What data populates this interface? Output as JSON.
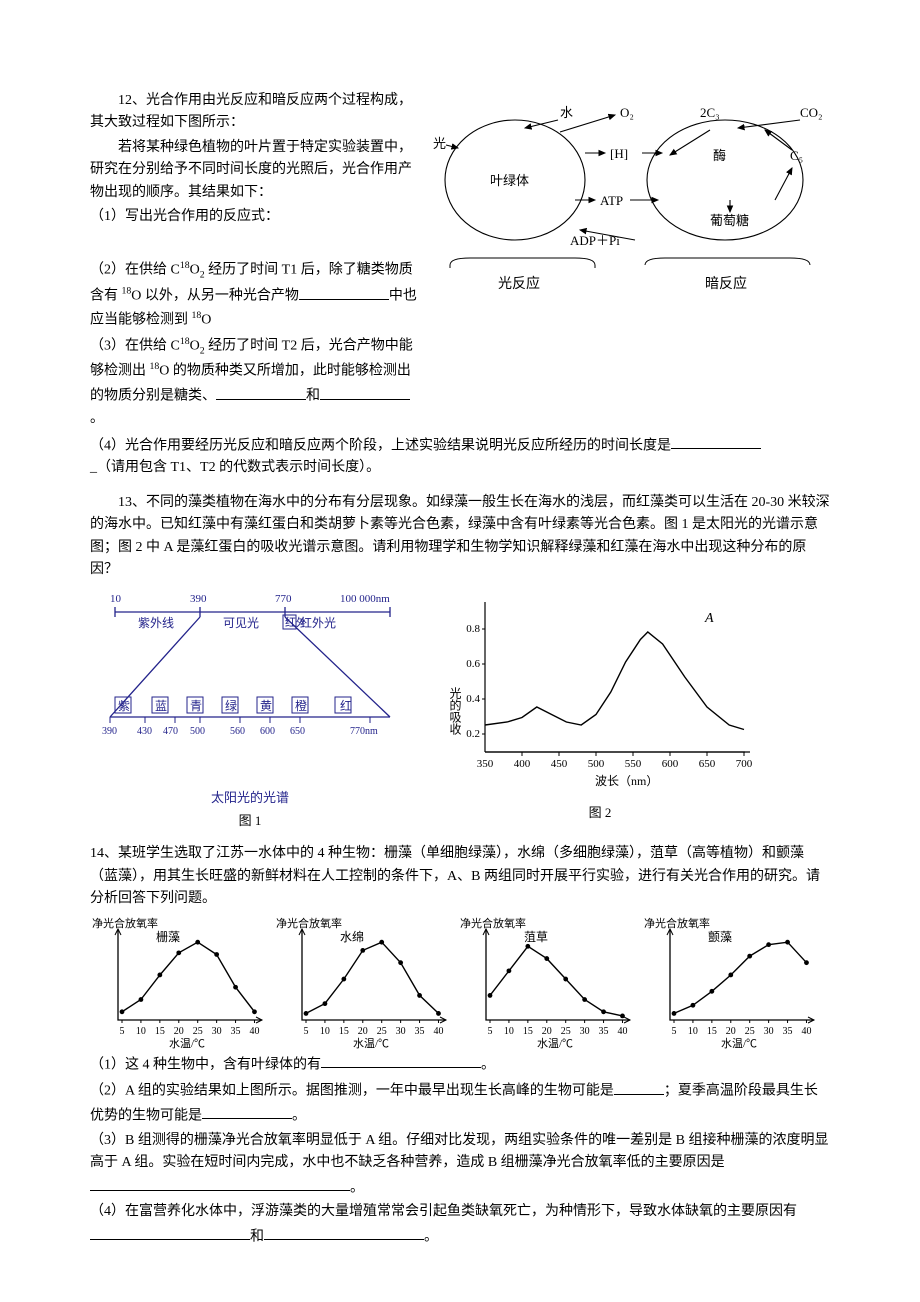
{
  "q12": {
    "intro": "12、光合作用由光反应和暗反应两个过程构成，其大致过程如下图所示：",
    "p1": "若将某种绿色植物的叶片置于特定实验装置中，研究在分别给予不同时间长度的光照后，光合作用产物出现的顺序。其结果如下：",
    "i1": "（1）写出光合作用的反应式：",
    "i2a": "（2）在供给 C",
    "i2b": "O",
    "i2c": " 经历了时间 T1 后，除了糖类物质含有 ",
    "i2d": "O 以外，从另一种光合产物",
    "i2e": "中也应当能够检测到 ",
    "i2f": "O",
    "i3a": "（3）在供给 C",
    "i3b": "O",
    "i3c": " 经历了时间 T2 后，光合产物中能够检测出 ",
    "i3d": "O 的物质种类又所增加，此时能够检测出的物质分别是糖类、",
    "i3e": "和",
    "i4a": "（4）光合作用要经历光反应和暗反应两个阶段，上述实验结果说明光反应所经历的时间长度是",
    "i4b": "_（请用包含 T1、T2 的代数式表示时间长度）。",
    "diagram": {
      "labels": {
        "water": "水",
        "O2": "O₂",
        "C2": "2C₃",
        "CO2": "CO₂",
        "light": "光",
        "H": "[H]",
        "enzyme": "酶",
        "chloroplast": "叶绿体",
        "ATP": "ATP",
        "glucose": "葡萄糖",
        "ADPPi": "ADP＋Pi",
        "light_reaction": "光反应",
        "dark_reaction": "暗反应",
        "C5": "C₅"
      },
      "color": "#000000",
      "stroke_width": 1.1,
      "font_size": 13
    }
  },
  "q13": {
    "intro": "13、不同的藻类植物在海水中的分布有分层现象。如绿藻一般生长在海水的浅层，而红藻类可以生活在 20-30 米较深的海水中。已知红藻中有藻红蛋白和类胡萝卜素等光合色素，绿藻中含有叶绿素等光合色素。图 1 是太阳光的光谱示意图；图 2 中 A 是藻红蛋白的吸收光谱示意图。请利用物理学和生物学知识解释绿藻和红藻在海水中出现这种分布的原因？",
    "fig1": {
      "caption_top": "太阳光的光谱",
      "caption_bottom": "图 1",
      "top_scale": [
        10,
        390,
        770,
        "100 000nm"
      ],
      "top_labels": [
        "紫外线",
        "可见光",
        "红外光"
      ],
      "colors_labels": [
        "紫",
        "蓝",
        "青",
        "绿",
        "黄",
        "橙",
        "红"
      ],
      "bottom_scale": [
        "390",
        "430",
        "470",
        "500",
        "560",
        "600",
        "650",
        "770nm"
      ],
      "line_color": "#23238b",
      "bg": "#ffffff"
    },
    "fig2": {
      "caption": "图 2",
      "ylabel": "光的吸收",
      "xlabel": "波长（nm）",
      "yticks": [
        0.2,
        0.4,
        0.6,
        0.8
      ],
      "xticks": [
        350,
        400,
        450,
        500,
        550,
        600,
        650,
        700
      ],
      "points": [
        [
          350,
          0.18
        ],
        [
          380,
          0.2
        ],
        [
          400,
          0.23
        ],
        [
          420,
          0.3
        ],
        [
          440,
          0.25
        ],
        [
          460,
          0.2
        ],
        [
          480,
          0.18
        ],
        [
          500,
          0.25
        ],
        [
          520,
          0.4
        ],
        [
          540,
          0.6
        ],
        [
          560,
          0.75
        ],
        [
          570,
          0.8
        ],
        [
          590,
          0.72
        ],
        [
          620,
          0.5
        ],
        [
          650,
          0.3
        ],
        [
          680,
          0.18
        ],
        [
          700,
          0.15
        ]
      ],
      "label_A": "A",
      "line_color": "#000000",
      "stroke_width": 1.3
    }
  },
  "q14": {
    "intro": "14、某班学生选取了江苏一水体中的 4 种生物：栅藻（单细胞绿藻），水绵（多细胞绿藻），菹草（高等植物）和颤藻（蓝藻），用其生长旺盛的新鲜材料在人工控制的条件下，A、B 两组同时开展平行实验，进行有关光合作用的研究。请分析回答下列问题。",
    "charts": {
      "ylabel": "净光合放氧率",
      "xlabel": "水温/℃",
      "xticks": [
        5,
        10,
        15,
        20,
        25,
        30,
        35,
        40
      ],
      "titles": [
        "栅藻",
        "水绵",
        "菹草",
        "颤藻"
      ],
      "series": [
        [
          [
            5,
            0.1
          ],
          [
            10,
            0.25
          ],
          [
            15,
            0.55
          ],
          [
            20,
            0.82
          ],
          [
            25,
            0.95
          ],
          [
            30,
            0.8
          ],
          [
            35,
            0.4
          ],
          [
            40,
            0.1
          ]
        ],
        [
          [
            5,
            0.08
          ],
          [
            10,
            0.2
          ],
          [
            15,
            0.5
          ],
          [
            20,
            0.85
          ],
          [
            25,
            0.95
          ],
          [
            30,
            0.7
          ],
          [
            35,
            0.3
          ],
          [
            40,
            0.08
          ]
        ],
        [
          [
            5,
            0.3
          ],
          [
            10,
            0.6
          ],
          [
            15,
            0.9
          ],
          [
            20,
            0.75
          ],
          [
            25,
            0.5
          ],
          [
            30,
            0.25
          ],
          [
            35,
            0.1
          ],
          [
            40,
            0.05
          ]
        ],
        [
          [
            5,
            0.08
          ],
          [
            10,
            0.18
          ],
          [
            15,
            0.35
          ],
          [
            20,
            0.55
          ],
          [
            25,
            0.78
          ],
          [
            30,
            0.92
          ],
          [
            35,
            0.95
          ],
          [
            40,
            0.7
          ]
        ]
      ],
      "line_color": "#000000",
      "marker_size": 2.4,
      "stroke_width": 1.4
    },
    "i1": "（1）这 4 种生物中，含有叶绿体的有",
    "i2a": "（2）A 组的实验结果如上图所示。据图推测，一年中最早出现生长高峰的生物可能是",
    "i2b": "；夏季高温阶段最具生长优势的生物可能是",
    "i3a": "（3）B 组测得的栅藻净光合放氧率明显低于 A 组。仔细对比发现，两组实验条件的唯一差别是 B 组接种栅藻的浓度明显高于 A 组。实验在短时间内完成，水中也不缺乏各种营养，造成 B 组栅藻净光合放氧率低的主要原因是",
    "i4a": "（4）在富营养化水体中，浮游藻类的大量增殖常常会引起鱼类缺氧死亡，为种情形下，导致水体缺氧的主要原因有",
    "i4b": "和"
  }
}
